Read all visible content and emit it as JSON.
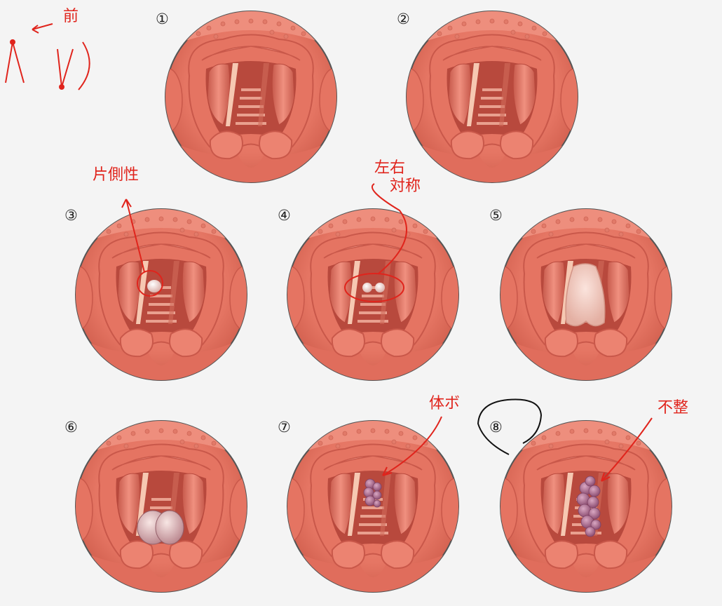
{
  "panels": [
    {
      "label": "①"
    },
    {
      "label": "②"
    },
    {
      "label": "③"
    },
    {
      "label": "④"
    },
    {
      "label": "⑤"
    },
    {
      "label": "⑥"
    },
    {
      "label": "⑦"
    },
    {
      "label": "⑧"
    }
  ],
  "annotations": {
    "front": "前",
    "unilateral": "片側性",
    "bilateral_line1": "左右",
    "bilateral_line2": "対称",
    "single": "体ボ",
    "irregular": "不整"
  },
  "colors": {
    "annotation_red": "#e0241c",
    "tissue": "#e97c6a",
    "tissue_dark": "#c9584a",
    "lesion_pale": "#f1d6d2",
    "lesion_purple": "#a86b8c",
    "cartilage": "#f6c8b2"
  }
}
